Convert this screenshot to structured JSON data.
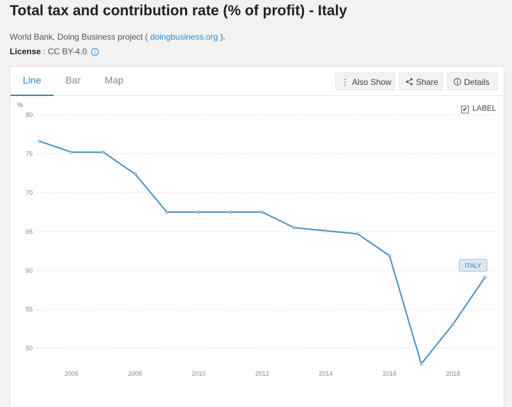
{
  "page": {
    "title": "Total tax and contribution rate (% of profit) - Italy",
    "source_prefix": "World Bank, Doing Business project ( ",
    "source_link": "doingbusiness.org",
    "source_suffix": " ).",
    "license_label": "License",
    "license_value": " : CC BY-4.0"
  },
  "tabs": [
    {
      "label": "Line"
    },
    {
      "label": "Bar"
    },
    {
      "label": "Map"
    }
  ],
  "toolbar": {
    "also_show": "Also Show",
    "share": "Share",
    "details": "Details"
  },
  "label_toggle": {
    "text": "LABEL",
    "checked": true
  },
  "colors": {
    "line": "#4a90bf",
    "accent": "#2a8bd2",
    "series_label_bg": "#dbe9f5",
    "series_label_border": "#9fc2dd"
  },
  "chart_data": {
    "type": "line",
    "title": "Total tax and contribution rate (% of profit) - Italy",
    "ylabel": "%",
    "xlabel": "",
    "ylim": [
      48,
      80
    ],
    "xlim": [
      2005,
      2019
    ],
    "yticks": [
      50,
      55,
      60,
      65,
      70,
      75,
      80
    ],
    "xticks": [
      2006,
      2008,
      2010,
      2012,
      2014,
      2016,
      2018
    ],
    "grid": true,
    "series": [
      {
        "name": "ITALY",
        "x": [
          2005,
          2006,
          2007,
          2008,
          2009,
          2010,
          2011,
          2012,
          2013,
          2014,
          2015,
          2016,
          2017,
          2018,
          2019
        ],
        "values": [
          76.6,
          75.2,
          75.2,
          72.4,
          67.5,
          67.5,
          67.5,
          67.5,
          65.5,
          65.1,
          64.7,
          61.9,
          48.0,
          53.1,
          59.1
        ]
      }
    ]
  }
}
